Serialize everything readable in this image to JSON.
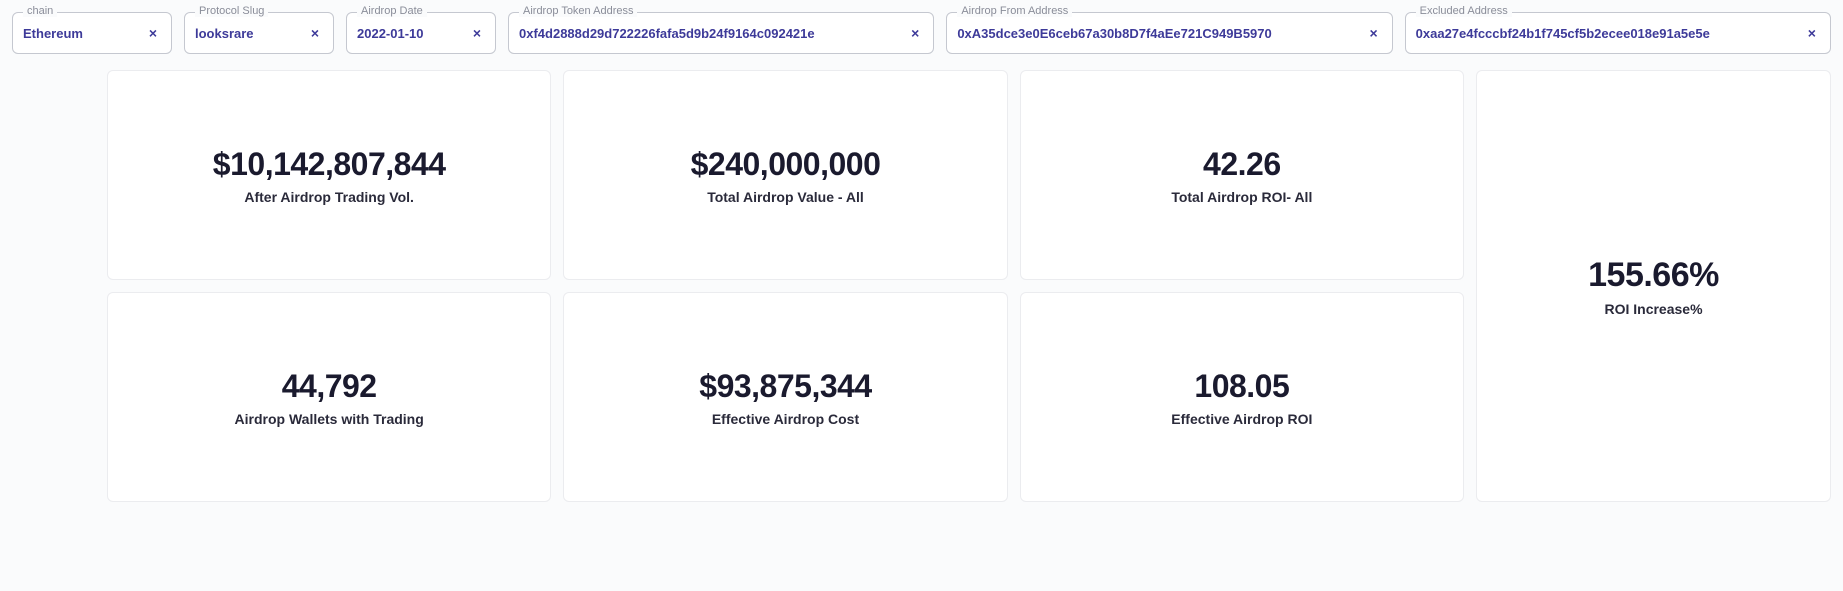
{
  "filters": [
    {
      "label": "chain",
      "value": "Ethereum"
    },
    {
      "label": "Protocol Slug",
      "value": "looksrare"
    },
    {
      "label": "Airdrop Date",
      "value": "2022-01-10"
    },
    {
      "label": "Airdrop Token Address",
      "value": "0xf4d2888d29d722226fafa5d9b24f9164c092421e"
    },
    {
      "label": "Airdrop From Address",
      "value": "0xA35dce3e0E6ceb67a30b8D7f4aEe721C949B5970"
    },
    {
      "label": "Excluded Address",
      "value": "0xaa27e4fcccbf24b1f745cf5b2ecee018e91a5e5e"
    }
  ],
  "cards": [
    {
      "value": "$10,142,807,844",
      "label": "After Airdrop Trading Vol."
    },
    {
      "value": "$240,000,000",
      "label": "Total Airdrop Value - All"
    },
    {
      "value": "42.26",
      "label": "Total Airdrop ROI- All"
    },
    {
      "value": "44,792",
      "label": "Airdrop Wallets with Trading"
    },
    {
      "value": "$93,875,344",
      "label": "Effective Airdrop Cost"
    },
    {
      "value": "108.05",
      "label": "Effective Airdrop ROI"
    }
  ],
  "summary": {
    "value": "155.66%",
    "label": "ROI Increase%"
  },
  "styling": {
    "background_color": "#fafbfc",
    "card_background": "#ffffff",
    "card_border": "#ebecef",
    "filter_border": "#c5c8d0",
    "filter_value_color": "#3d3a99",
    "filter_label_color": "#8a8d99",
    "value_color": "#1a1a2e",
    "label_color": "#2a2a3a",
    "value_fontsize": 32,
    "label_fontsize": 14,
    "filter_value_fontsize": 13,
    "filter_label_fontsize": 11
  }
}
